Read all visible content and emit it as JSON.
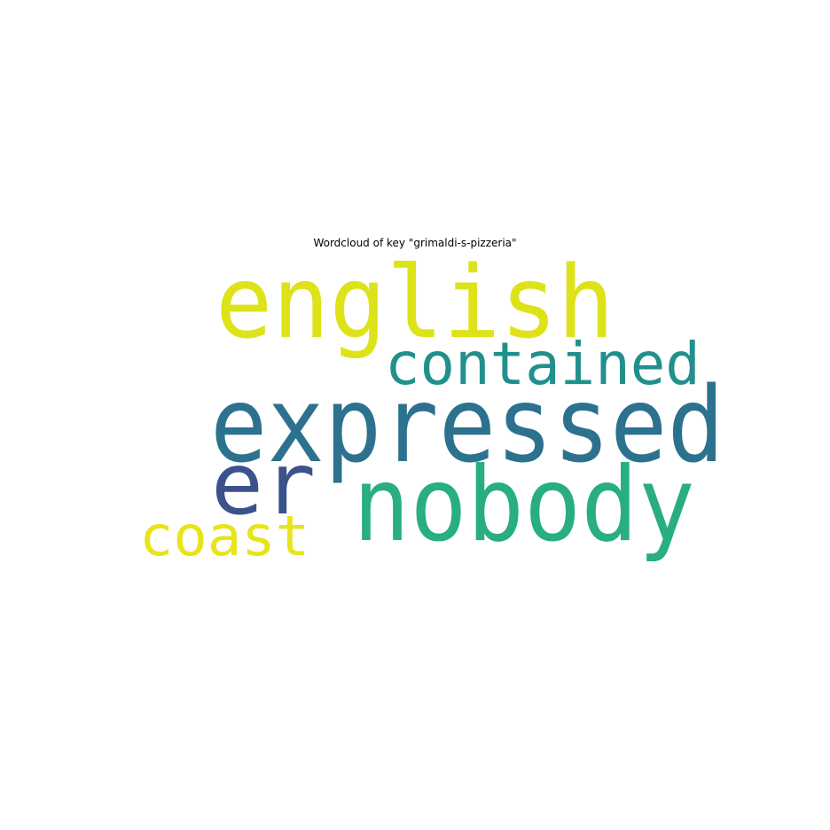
{
  "title": "Wordcloud of key \"grimaldi-s-pizzeria\"",
  "words": [
    {
      "text": "english",
      "color": "#dde318"
    },
    {
      "text": "contained",
      "color": "#21908d"
    },
    {
      "text": "expressed",
      "color": "#2c728e"
    },
    {
      "text": "er",
      "color": "#3b528b"
    },
    {
      "text": "nobody",
      "color": "#28ae80"
    },
    {
      "text": "coast",
      "color": "#e7e419"
    }
  ]
}
